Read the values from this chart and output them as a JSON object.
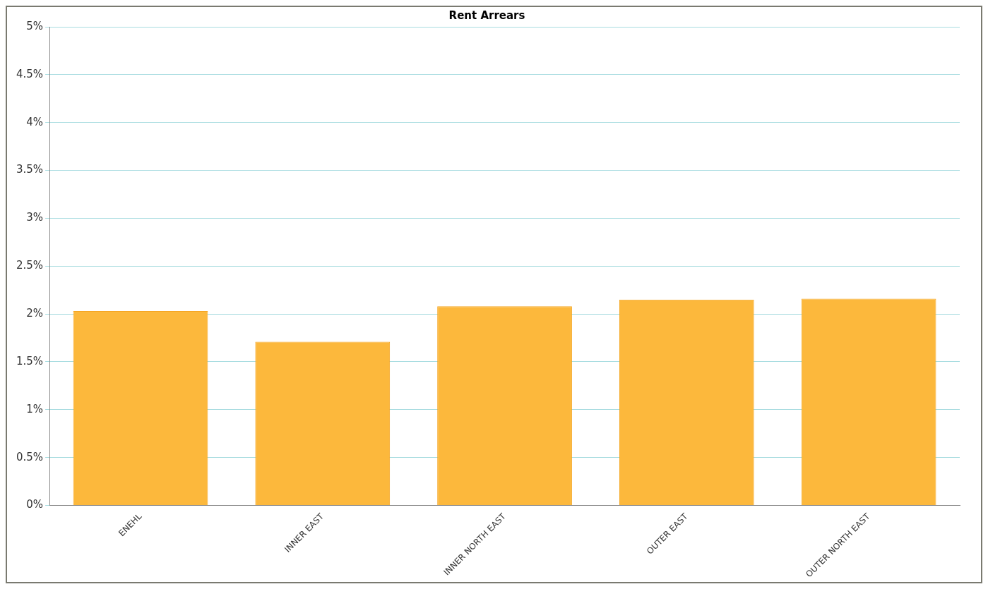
{
  "chart_data": {
    "type": "bar",
    "title": "Rent Arrears",
    "categories": [
      "ENEHL",
      "INNER EAST",
      "INNER NORTH EAST",
      "OUTER EAST",
      "OUTER NORTH EAST"
    ],
    "values": [
      2.03,
      1.71,
      2.08,
      2.15,
      2.16
    ],
    "color": "#fcb83c",
    "ylim": [
      0,
      5
    ],
    "yticks": [
      {
        "value": 0,
        "label": "0%"
      },
      {
        "value": 0.5,
        "label": "0.5%"
      },
      {
        "value": 1,
        "label": "1%"
      },
      {
        "value": 1.5,
        "label": "1.5%"
      },
      {
        "value": 2,
        "label": "2%"
      },
      {
        "value": 2.5,
        "label": "2.5%"
      },
      {
        "value": 3,
        "label": "3%"
      },
      {
        "value": 3.5,
        "label": "3.5%"
      },
      {
        "value": 4,
        "label": "4%"
      },
      {
        "value": 4.5,
        "label": "4.5%"
      },
      {
        "value": 5,
        "label": "5%"
      }
    ],
    "grid": "y",
    "legend": false
  }
}
